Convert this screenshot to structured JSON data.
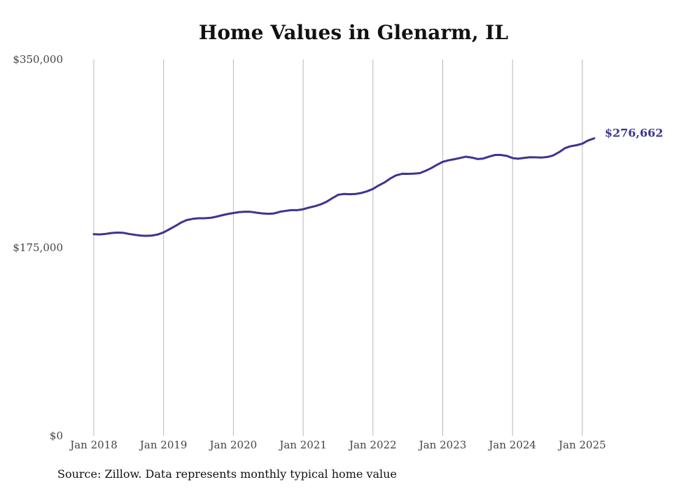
{
  "chart_data": {
    "type": "line",
    "title": "Home Values in Glenarm, IL",
    "xlabel": "",
    "ylabel": "",
    "ylim": [
      0,
      350000
    ],
    "y_ticks": [
      {
        "value": 0,
        "label": "$0"
      },
      {
        "value": 175000,
        "label": "$175,000"
      },
      {
        "value": 350000,
        "label": "$350,000"
      }
    ],
    "x_ticks": [
      {
        "value": 2018,
        "label": "Jan 2018"
      },
      {
        "value": 2019,
        "label": "Jan 2019"
      },
      {
        "value": 2020,
        "label": "Jan 2020"
      },
      {
        "value": 2021,
        "label": "Jan 2021"
      },
      {
        "value": 2022,
        "label": "Jan 2022"
      },
      {
        "value": 2023,
        "label": "Jan 2023"
      },
      {
        "value": 2024,
        "label": "Jan 2024"
      },
      {
        "value": 2025,
        "label": "Jan 2025"
      }
    ],
    "xlim": [
      2018,
      2025.42
    ],
    "grid": "vertical",
    "line_color": "#3d3591",
    "series": [
      {
        "values": [
          [
            2018.0,
            187500
          ],
          [
            2018.08,
            187300
          ],
          [
            2018.17,
            187800
          ],
          [
            2018.25,
            188600
          ],
          [
            2018.33,
            189000
          ],
          [
            2018.42,
            188800
          ],
          [
            2018.5,
            187800
          ],
          [
            2018.58,
            187000
          ],
          [
            2018.67,
            186200
          ],
          [
            2018.75,
            186000
          ],
          [
            2018.83,
            186200
          ],
          [
            2018.92,
            187300
          ],
          [
            2019.0,
            189200
          ],
          [
            2019.08,
            192000
          ],
          [
            2019.17,
            195200
          ],
          [
            2019.25,
            198300
          ],
          [
            2019.33,
            200600
          ],
          [
            2019.42,
            201800
          ],
          [
            2019.5,
            202300
          ],
          [
            2019.58,
            202300
          ],
          [
            2019.67,
            202700
          ],
          [
            2019.75,
            203700
          ],
          [
            2019.83,
            205000
          ],
          [
            2019.92,
            206300
          ],
          [
            2020.0,
            207200
          ],
          [
            2020.08,
            208000
          ],
          [
            2020.17,
            208400
          ],
          [
            2020.25,
            208300
          ],
          [
            2020.33,
            207500
          ],
          [
            2020.42,
            206800
          ],
          [
            2020.5,
            206500
          ],
          [
            2020.58,
            206800
          ],
          [
            2020.67,
            208400
          ],
          [
            2020.75,
            209200
          ],
          [
            2020.83,
            209900
          ],
          [
            2020.92,
            209900
          ],
          [
            2021.0,
            210700
          ],
          [
            2021.08,
            212200
          ],
          [
            2021.17,
            213600
          ],
          [
            2021.25,
            215200
          ],
          [
            2021.33,
            217500
          ],
          [
            2021.42,
            221100
          ],
          [
            2021.5,
            224100
          ],
          [
            2021.58,
            224900
          ],
          [
            2021.67,
            224700
          ],
          [
            2021.75,
            224900
          ],
          [
            2021.83,
            225800
          ],
          [
            2021.92,
            227500
          ],
          [
            2022.0,
            229600
          ],
          [
            2022.08,
            232800
          ],
          [
            2022.17,
            235800
          ],
          [
            2022.25,
            239400
          ],
          [
            2022.33,
            242200
          ],
          [
            2022.42,
            243700
          ],
          [
            2022.5,
            243600
          ],
          [
            2022.58,
            243800
          ],
          [
            2022.67,
            244300
          ],
          [
            2022.75,
            246300
          ],
          [
            2022.83,
            248800
          ],
          [
            2022.92,
            252100
          ],
          [
            2023.0,
            254800
          ],
          [
            2023.08,
            256200
          ],
          [
            2023.17,
            257300
          ],
          [
            2023.25,
            258400
          ],
          [
            2023.33,
            259600
          ],
          [
            2023.42,
            258700
          ],
          [
            2023.5,
            257400
          ],
          [
            2023.58,
            257900
          ],
          [
            2023.67,
            259800
          ],
          [
            2023.75,
            261200
          ],
          [
            2023.83,
            261200
          ],
          [
            2023.92,
            260300
          ],
          [
            2024.0,
            258300
          ],
          [
            2024.08,
            257700
          ],
          [
            2024.17,
            258500
          ],
          [
            2024.25,
            259100
          ],
          [
            2024.33,
            259000
          ],
          [
            2024.42,
            258800
          ],
          [
            2024.5,
            259300
          ],
          [
            2024.58,
            260700
          ],
          [
            2024.67,
            263900
          ],
          [
            2024.75,
            267500
          ],
          [
            2024.83,
            269300
          ],
          [
            2024.92,
            270300
          ],
          [
            2025.0,
            271700
          ],
          [
            2025.08,
            274600
          ],
          [
            2025.17,
            276662
          ]
        ]
      }
    ],
    "end_label": "$276,662",
    "source_note": "Source: Zillow. Data represents monthly typical home value"
  }
}
